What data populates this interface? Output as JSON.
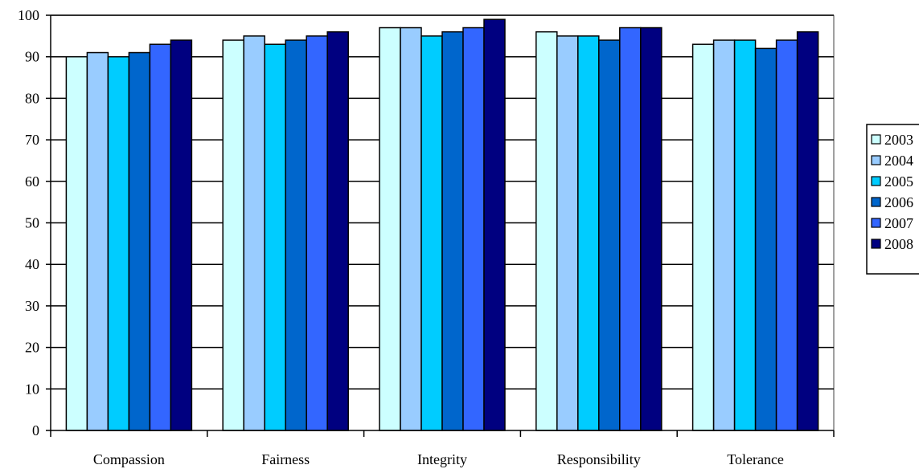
{
  "chart_data": {
    "type": "bar",
    "categories": [
      "Compassion",
      "Fairness",
      "Integrity",
      "Responsibility",
      "Tolerance"
    ],
    "series": [
      {
        "name": "2003",
        "color": "#ccffff",
        "values": [
          90,
          94,
          97,
          96,
          93
        ]
      },
      {
        "name": "2004",
        "color": "#99ccff",
        "values": [
          91,
          95,
          97,
          95,
          94
        ]
      },
      {
        "name": "2005",
        "color": "#00ccff",
        "values": [
          90,
          93,
          95,
          95,
          94
        ]
      },
      {
        "name": "2006",
        "color": "#0066cc",
        "values": [
          91,
          94,
          96,
          94,
          92
        ]
      },
      {
        "name": "2007",
        "color": "#3366ff",
        "values": [
          93,
          95,
          97,
          97,
          94
        ]
      },
      {
        "name": "2008",
        "color": "#000080",
        "values": [
          94,
          96,
          99,
          97,
          96
        ]
      }
    ],
    "ylim": [
      0,
      100
    ],
    "yticks": [
      0,
      10,
      20,
      30,
      40,
      50,
      60,
      70,
      80,
      90,
      100
    ],
    "ytick_labels": [
      "0",
      "10",
      "20",
      "30",
      "40",
      "50",
      "60",
      "70",
      "80",
      "90",
      "100"
    ],
    "grid": true,
    "legend_position": "right"
  }
}
